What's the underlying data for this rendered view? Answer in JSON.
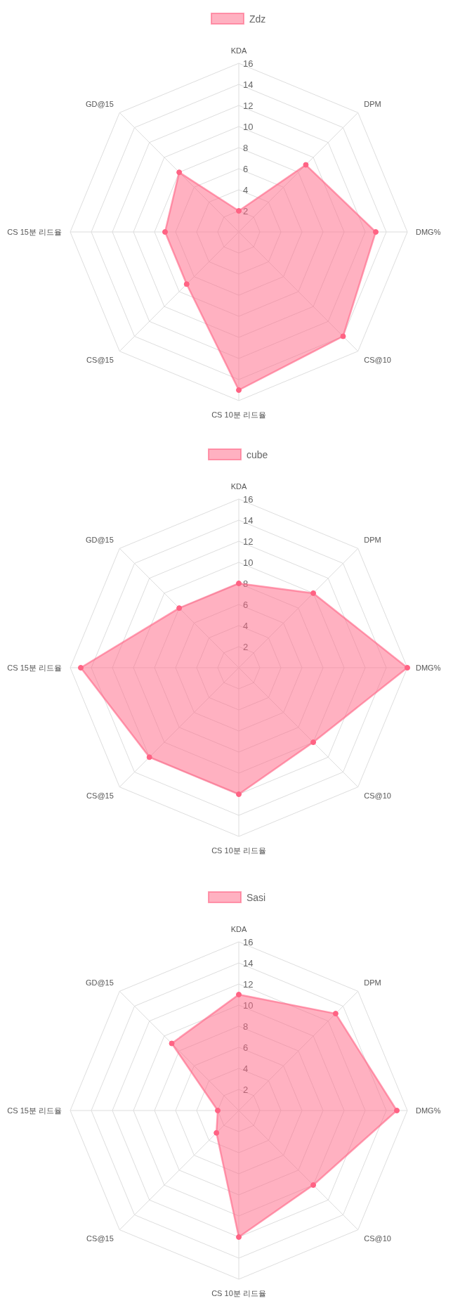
{
  "chart_data": [
    {
      "type": "radar",
      "categories": [
        "KDA",
        "DPM",
        "DMG%",
        "CS@10",
        "CS 10분 리드율",
        "CS@15",
        "CS 15분 리드율",
        "GD@15"
      ],
      "series": [
        {
          "name": "Zdz",
          "color": "#ff6384",
          "values": [
            2,
            9,
            13,
            14,
            15,
            7,
            7,
            8
          ]
        }
      ],
      "ylim": [
        0,
        16
      ],
      "yticks": [
        2,
        4,
        6,
        8,
        10,
        12,
        14,
        16
      ],
      "grid": true,
      "legend": "top",
      "marker": "circle"
    },
    {
      "type": "radar",
      "categories": [
        "KDA",
        "DPM",
        "DMG%",
        "CS@10",
        "CS 10분 리드율",
        "CS@15",
        "CS 15분 리드율",
        "GD@15"
      ],
      "series": [
        {
          "name": "cube",
          "color": "#ff6384",
          "values": [
            8,
            10,
            16,
            10,
            12,
            12,
            15,
            8
          ]
        }
      ],
      "ylim": [
        0,
        16
      ],
      "yticks": [
        2,
        4,
        6,
        8,
        10,
        12,
        14,
        16
      ],
      "grid": true,
      "legend": "top",
      "marker": "circle"
    },
    {
      "type": "radar",
      "categories": [
        "KDA",
        "DPM",
        "DMG%",
        "CS@10",
        "CS 10분 리드율",
        "CS@15",
        "CS 15분 리드율",
        "GD@15"
      ],
      "series": [
        {
          "name": "Sasi",
          "color": "#ff6384",
          "values": [
            11,
            13,
            15,
            10,
            12,
            3,
            2,
            9
          ]
        }
      ],
      "ylim": [
        0,
        16
      ],
      "yticks": [
        2,
        4,
        6,
        8,
        10,
        12,
        14,
        16
      ],
      "grid": true,
      "legend": "top",
      "marker": "circle"
    }
  ]
}
